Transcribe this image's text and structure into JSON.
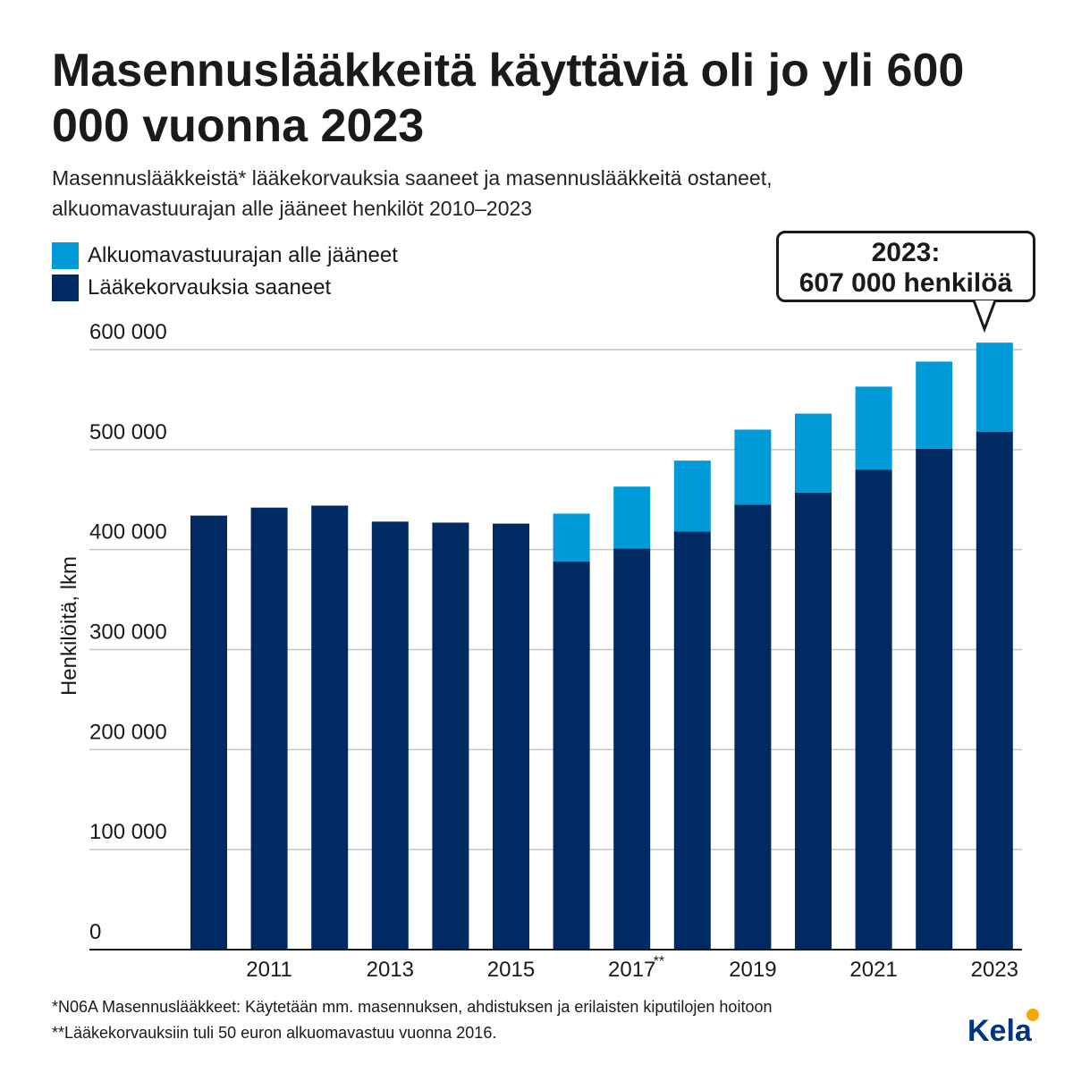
{
  "title": "Masennuslääkkeitä käyttäviä oli jo yli 600 000 vuonna 2023",
  "subtitle_line1": "Masennuslääkkeistä* lääkekorvauksia saaneet ja masennuslääkkeitä ostaneet,",
  "subtitle_line2": "alkuomavastuurajan alle jääneet henkilöt 2010–2023",
  "legend": [
    {
      "label": "Alkuomavastuurajan alle jääneet",
      "color": "#009ad8"
    },
    {
      "label": "Lääkekorvauksia saaneet",
      "color": "#002a61"
    }
  ],
  "callout": {
    "line1": "2023:",
    "line2": "607 000 henkilöä"
  },
  "footnotes": [
    "*N06A Masennuslääkkeet: Käytetään mm. masennuksen, ahdistuksen ja erilaisten kiputilojen hoitoon",
    "**Lääkekorvauksiin tuli 50 euron alkuomavastuu vuonna 2016."
  ],
  "logo": {
    "text": "Kela",
    "color": "#003580",
    "accent": "#f5a800"
  },
  "chart_data": {
    "type": "bar",
    "stacked": true,
    "ylabel": "Henkilöitä, lkm",
    "ylim": [
      0,
      600000
    ],
    "yticks": [
      0,
      100000,
      200000,
      300000,
      400000,
      500000,
      600000
    ],
    "ytick_labels": [
      "0",
      "100 000",
      "200 000",
      "300 000",
      "400 000",
      "500 000",
      "600 000"
    ],
    "grid": true,
    "categories": [
      "2010",
      "2011",
      "2012",
      "2013",
      "2014",
      "2015",
      "2016",
      "2017",
      "2018",
      "2019",
      "2020",
      "2021",
      "2022",
      "2023"
    ],
    "xtick_labels": [
      "",
      "2011",
      "",
      "2013",
      "",
      "2015",
      "",
      "2017",
      "",
      "2019",
      "",
      "2021",
      "",
      "2023"
    ],
    "xtick_marker": {
      "category": "2017",
      "text": "**"
    },
    "series": [
      {
        "name": "Lääkekorvauksia saaneet",
        "color": "#002a61",
        "values": [
          434000,
          442000,
          444000,
          428000,
          427000,
          426000,
          388000,
          401000,
          418000,
          445000,
          457000,
          480000,
          501000,
          518000
        ]
      },
      {
        "name": "Alkuomavastuurajan alle jääneet",
        "color": "#009ad8",
        "values": [
          0,
          0,
          0,
          0,
          0,
          0,
          48000,
          62000,
          71000,
          75000,
          79000,
          83000,
          87000,
          89000
        ]
      }
    ]
  }
}
